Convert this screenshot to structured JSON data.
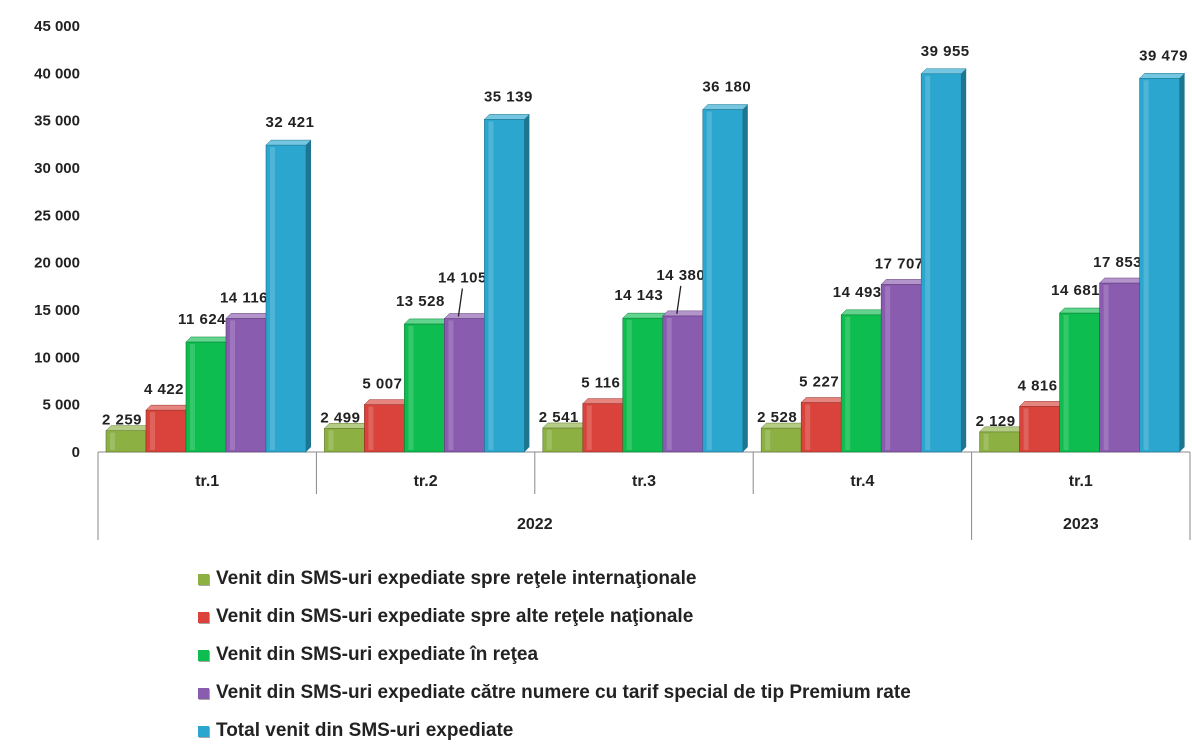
{
  "chart_data": {
    "type": "bar",
    "categories": [
      "tr.1",
      "tr.2",
      "tr.3",
      "tr.4",
      "tr.1"
    ],
    "groups": [
      {
        "label": "2022",
        "span": 4
      },
      {
        "label": "2023",
        "span": 1
      }
    ],
    "series": [
      {
        "name": "Venit din SMS-uri expediate spre reţele internaţionale",
        "color": "#8db043",
        "values": [
          2259,
          2499,
          2541,
          2528,
          2129
        ],
        "labels": [
          "2 259",
          "2 499",
          "2 541",
          "2 528",
          "2 129"
        ]
      },
      {
        "name": "Venit din SMS-uri expediate spre alte reţele naţionale",
        "color": "#d9433b",
        "values": [
          4422,
          5007,
          5116,
          5227,
          4816
        ],
        "labels": [
          "4 422",
          "5 007",
          "5 116",
          "5 227",
          "4 816"
        ]
      },
      {
        "name": "Venit din SMS-uri expediate în reţea",
        "color": "#0dbd4f",
        "values": [
          11624,
          13528,
          14143,
          14493,
          14681
        ],
        "labels": [
          "11 624",
          "13 528",
          "14 143",
          "14 493",
          "14 681"
        ]
      },
      {
        "name": "Venit din SMS-uri expediate către numere cu tarif special de tip Premium rate",
        "color": "#8a5cb0",
        "values": [
          14116,
          14105,
          14380,
          17707,
          17853
        ],
        "labels": [
          "14 116",
          "14 105",
          "14 380",
          "17 707",
          "17 853"
        ]
      },
      {
        "name": "Total venit din SMS-uri expediate",
        "color": "#2ba7cf",
        "values": [
          32421,
          35139,
          36180,
          39955,
          39479
        ],
        "labels": [
          "32 421",
          "35 139",
          "36 180",
          "39 955",
          "39 479"
        ]
      }
    ],
    "yticks": [
      "0",
      "5 000",
      "10 000",
      "15 000",
      "20 000",
      "25 000",
      "30 000",
      "35 000",
      "40 000",
      "45 000"
    ],
    "ylim": [
      0,
      45000
    ],
    "grid": false,
    "legend_position": "bottom"
  }
}
